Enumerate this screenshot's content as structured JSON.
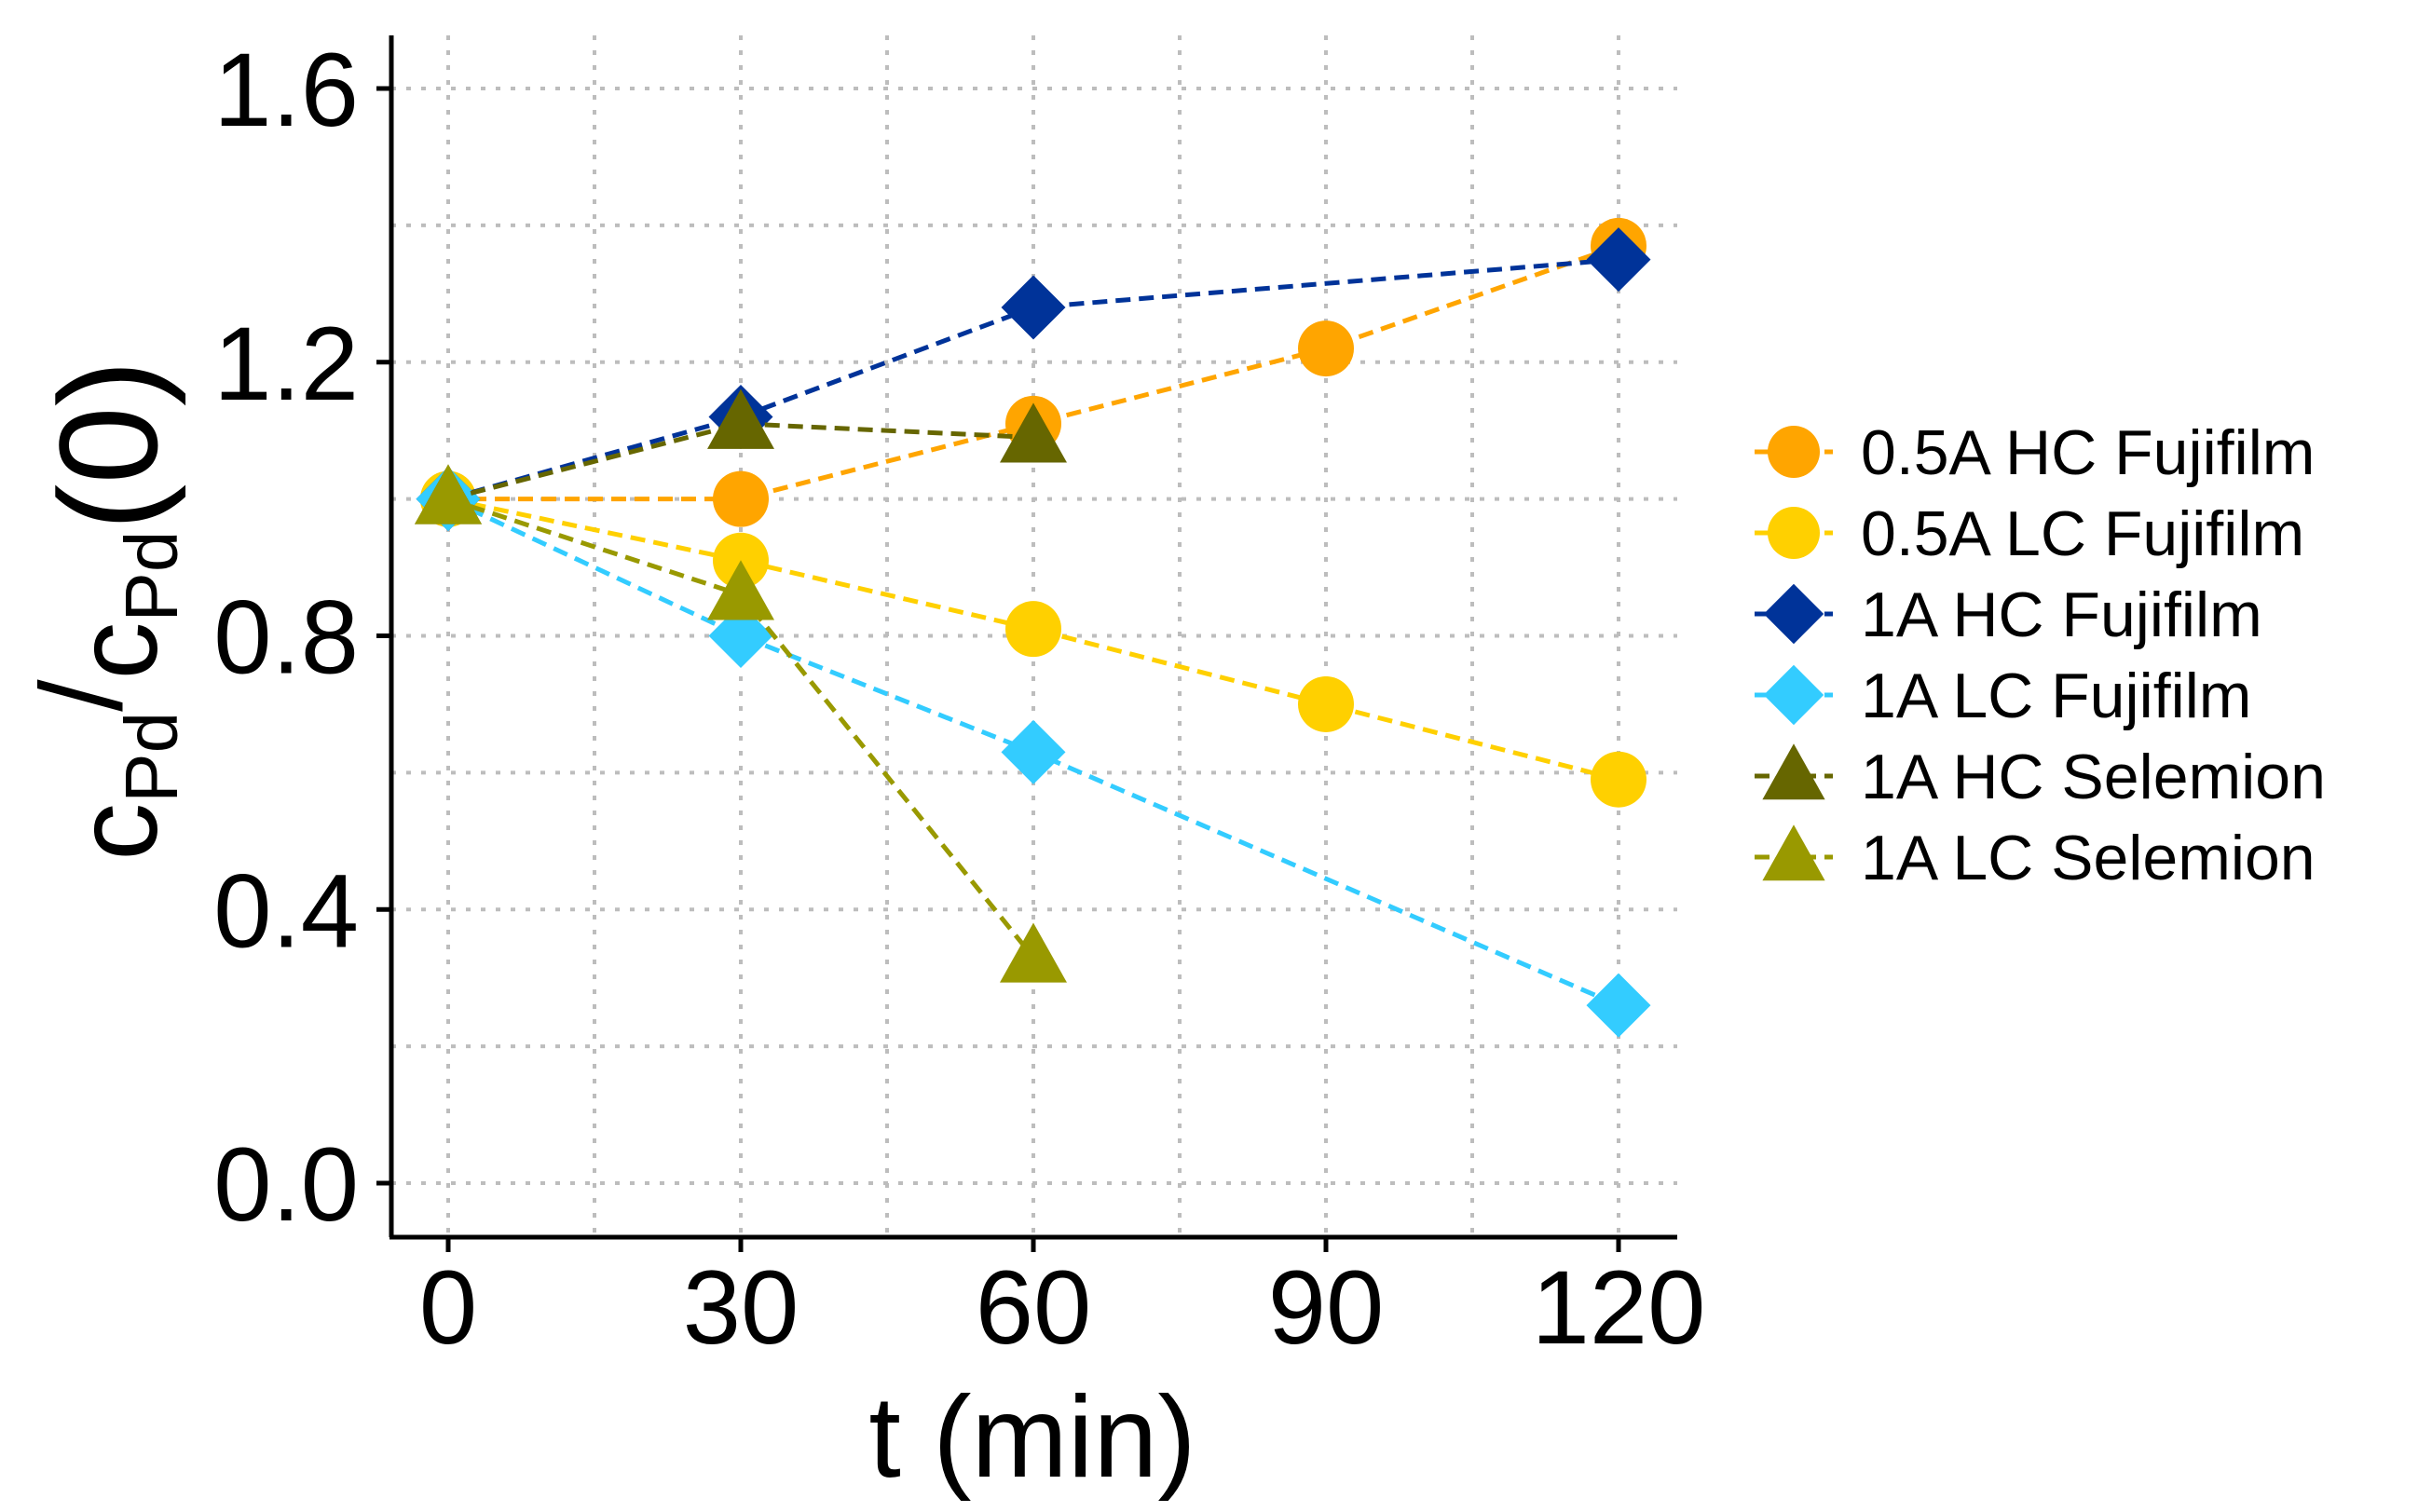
{
  "chart_data": {
    "type": "line",
    "title": "",
    "xlabel": "t (min)",
    "ylabel": {
      "main1": "c",
      "sub1": "Pd",
      "slash": "/",
      "main2": "c",
      "sub2": "Pd",
      "tail": "(0)"
    },
    "xlim": [
      -5,
      125
    ],
    "ylim": [
      -0.08,
      1.68
    ],
    "x_ticks": [
      0,
      30,
      60,
      90,
      120
    ],
    "x_tick_labels": [
      "0",
      "30",
      "60",
      "90",
      "120"
    ],
    "y_ticks": [
      0.0,
      0.4,
      0.8,
      1.2,
      1.6
    ],
    "y_tick_labels": [
      "0.0",
      "0.4",
      "0.8",
      "1.2",
      "1.6"
    ],
    "grid": true,
    "legend_position": "right",
    "series": [
      {
        "name": "0.5A HC Fujifilm",
        "color": "#FFA500",
        "marker": "circle",
        "x": [
          0,
          30,
          60,
          90,
          120
        ],
        "y": [
          1.0,
          1.0,
          1.11,
          1.22,
          1.37
        ]
      },
      {
        "name": "0.5A LC Fujifilm",
        "color": "#FFD000",
        "marker": "circle",
        "x": [
          0,
          30,
          60,
          90,
          120
        ],
        "y": [
          1.0,
          0.91,
          0.81,
          0.7,
          0.59
        ]
      },
      {
        "name": "1A HC Fujifilm",
        "color": "#003399",
        "marker": "diamond",
        "x": [
          0,
          30,
          60,
          120
        ],
        "y": [
          1.0,
          1.12,
          1.28,
          1.35
        ]
      },
      {
        "name": "1A LC Fujifilm",
        "color": "#33CCFF",
        "marker": "diamond",
        "x": [
          0,
          30,
          60,
          120
        ],
        "y": [
          1.0,
          0.8,
          0.63,
          0.26
        ]
      },
      {
        "name": "1A HC Selemion",
        "color": "#666600",
        "marker": "triangle",
        "x": [
          0,
          30,
          60
        ],
        "y": [
          1.0,
          1.11,
          1.09
        ]
      },
      {
        "name": "1A LC Selemion",
        "color": "#999900",
        "marker": "triangle",
        "x": [
          0,
          30,
          60
        ],
        "y": [
          1.0,
          0.86,
          0.33
        ]
      }
    ]
  }
}
